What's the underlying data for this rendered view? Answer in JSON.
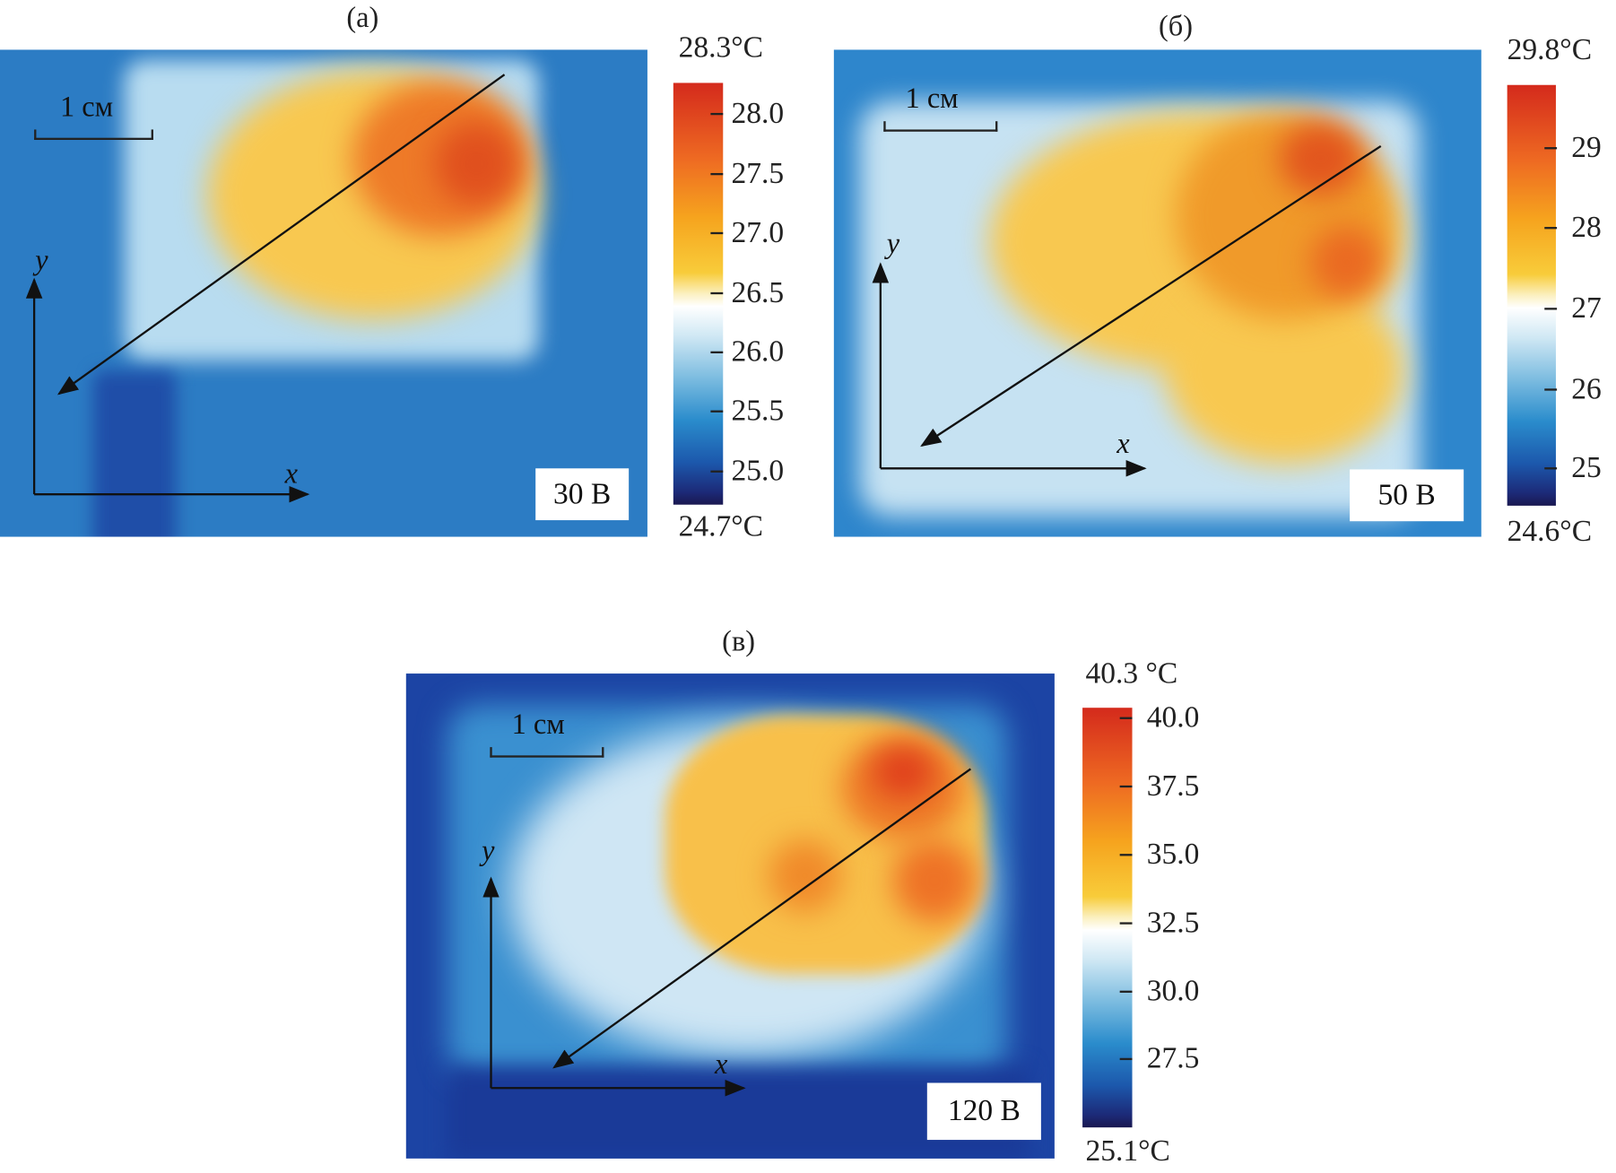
{
  "panels": [
    {
      "id": "a",
      "title": "(а)",
      "voltage": "30 В",
      "scale_label": "1 см",
      "axis_x": "x",
      "axis_y": "y",
      "colorbar": {
        "max_label": "28.3°C",
        "min_label": "24.7°C",
        "ticks": [
          "28.0",
          "27.5",
          "27.0",
          "26.5",
          "26.0",
          "25.5",
          "25.0"
        ]
      }
    },
    {
      "id": "b",
      "title": "(б)",
      "voltage": "50 В",
      "scale_label": "1 см",
      "axis_x": "x",
      "axis_y": "y",
      "colorbar": {
        "max_label": "29.8°C",
        "min_label": "24.6°C",
        "ticks": [
          "29",
          "28",
          "27",
          "26",
          "25"
        ]
      }
    },
    {
      "id": "c",
      "title": "(в)",
      "voltage": "120 В",
      "scale_label": "1 см",
      "axis_x": "x",
      "axis_y": "y",
      "colorbar": {
        "max_label": "40.3 °C",
        "min_label": "25.1°C",
        "ticks": [
          "40.0",
          "37.5",
          "35.0",
          "32.5",
          "30.0",
          "27.5"
        ]
      }
    }
  ],
  "colors": {
    "hot": "#d42a1c",
    "warm": "#f6a41e",
    "neutral": "#ffffff",
    "cool": "#2a8ccc",
    "cold": "#1a1850"
  }
}
